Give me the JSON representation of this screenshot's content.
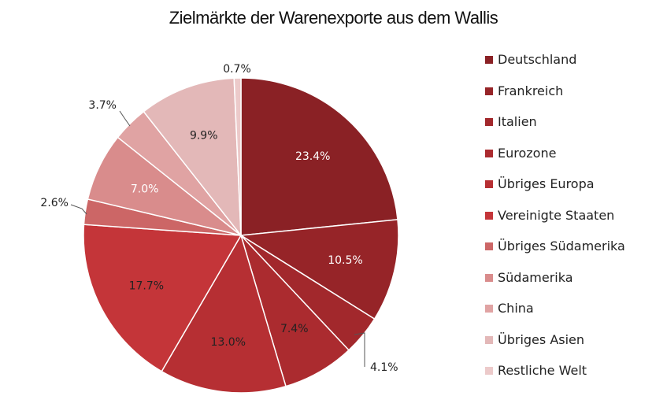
{
  "chart_data": {
    "type": "pie",
    "title": "Zielmärkte der Warenexporte aus dem Wallis",
    "legend_position": "right",
    "slices": [
      {
        "label": "Deutschland",
        "value": 23.4,
        "display": "23.4%",
        "color": "#8a2125",
        "text_color": "#ffffff",
        "label_inside": true
      },
      {
        "label": "Frankreich",
        "value": 10.5,
        "display": "10.5%",
        "color": "#962428",
        "text_color": "#ffffff",
        "label_inside": true
      },
      {
        "label": "Italien",
        "value": 4.1,
        "display": "4.1%",
        "color": "#a2282c",
        "text_color": "#222222",
        "label_inside": false
      },
      {
        "label": "Eurozone",
        "value": 7.4,
        "display": "7.4%",
        "color": "#ab2b2f",
        "text_color": "#222222",
        "label_inside": true
      },
      {
        "label": "Übriges Europa",
        "value": 13.0,
        "display": "13.0%",
        "color": "#b62f33",
        "text_color": "#222222",
        "label_inside": true
      },
      {
        "label": "Vereinigte Staaten",
        "value": 17.7,
        "display": "17.7%",
        "color": "#c43539",
        "text_color": "#222222",
        "label_inside": true
      },
      {
        "label": "Übriges Südamerika",
        "value": 2.6,
        "display": "2.6%",
        "color": "#cc6666",
        "text_color": "#222222",
        "label_inside": false
      },
      {
        "label": "Südamerika",
        "value": 7.0,
        "display": "7.0%",
        "color": "#d98c8c",
        "text_color": "#ffffff",
        "label_inside": true
      },
      {
        "label": "China",
        "value": 3.7,
        "display": "3.7%",
        "color": "#e0a3a3",
        "text_color": "#222222",
        "label_inside": false
      },
      {
        "label": "Übriges Asien",
        "value": 9.9,
        "display": "9.9%",
        "color": "#e3b8b8",
        "text_color": "#222222",
        "label_inside": true
      },
      {
        "label": "Restliche Welt",
        "value": 0.7,
        "display": "0.7%",
        "color": "#eccaca",
        "text_color": "#222222",
        "label_inside": false
      }
    ]
  }
}
